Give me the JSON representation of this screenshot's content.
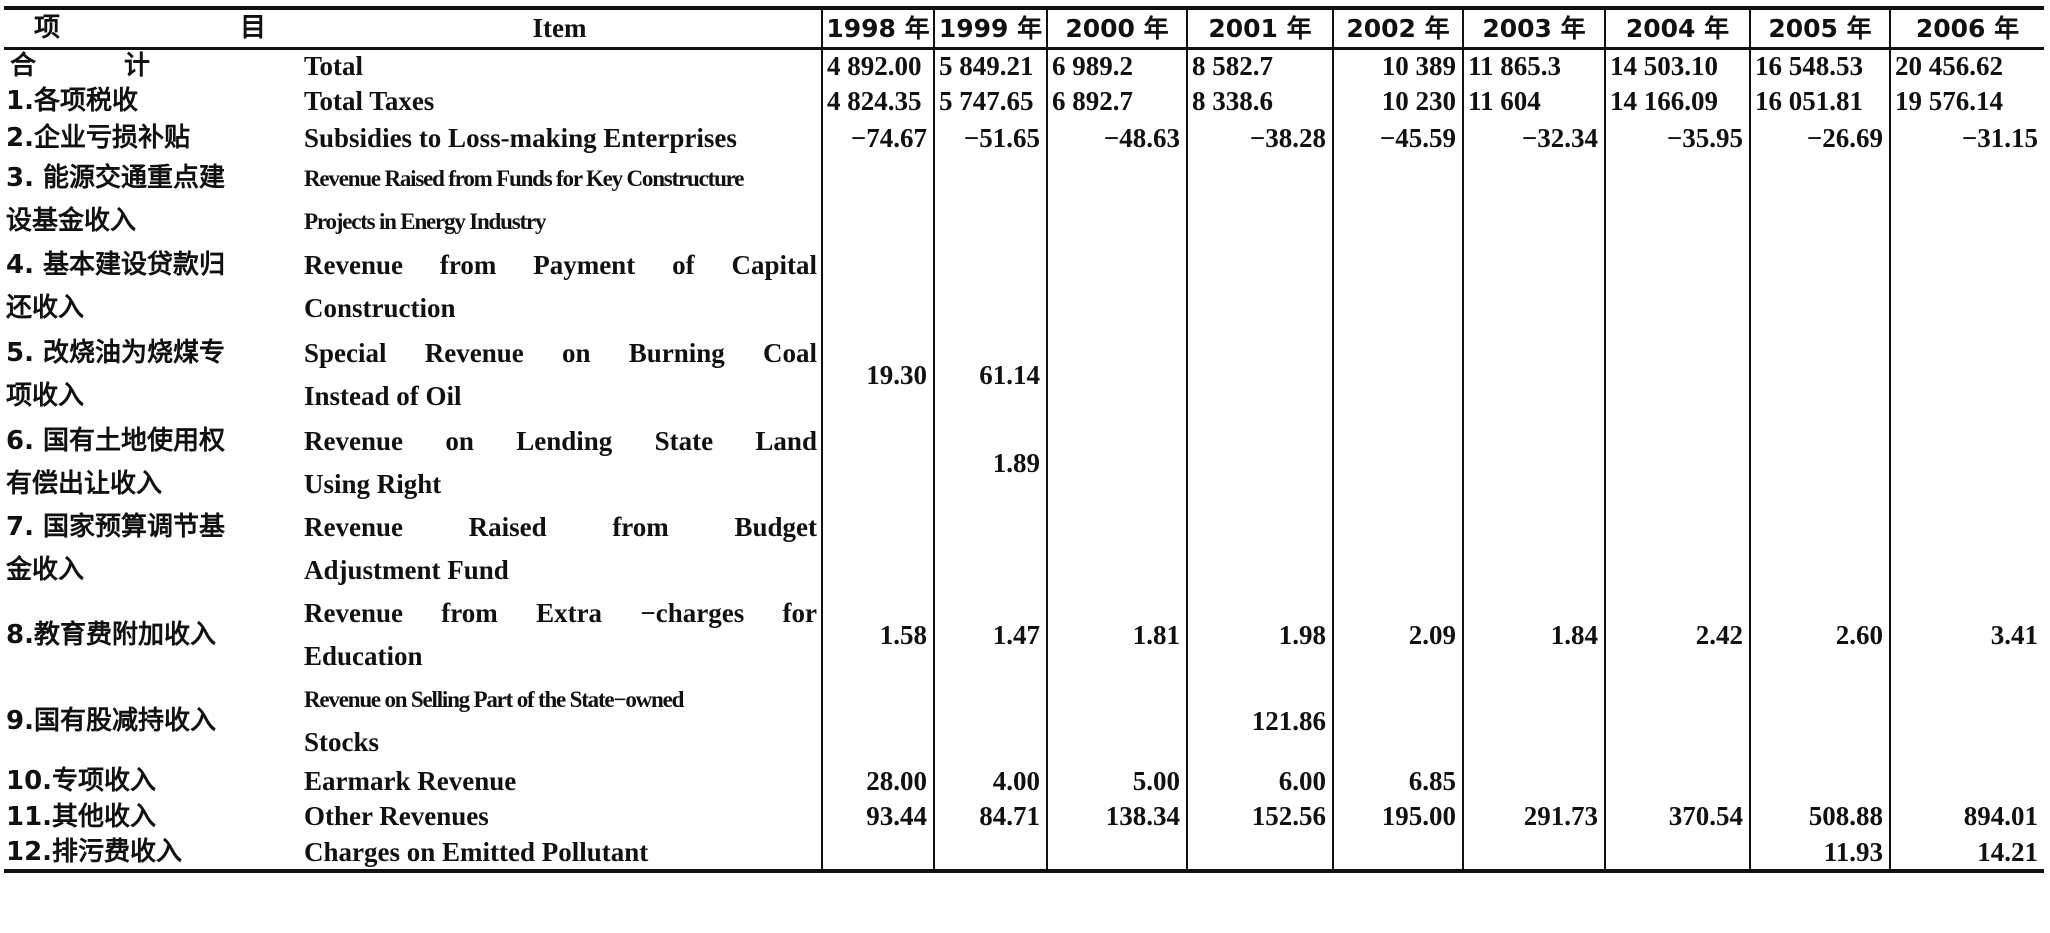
{
  "header": {
    "col_zh_1": "项",
    "col_zh_2": "目",
    "col_en": "Item",
    "years": [
      "1998 年",
      "1999 年",
      "2000 年",
      "2001 年",
      "2002 年",
      "2003 年",
      "2004 年",
      "2005 年",
      "2006 年"
    ]
  },
  "rows": {
    "total": {
      "zh_1": "合",
      "zh_2": "计",
      "en": "Total",
      "values": [
        "4 892.00",
        "5 849.21",
        "6 989.2",
        "8 582.7",
        "10 389",
        "11 865.3",
        "14 503.10",
        "16 548.53",
        "20 456.62"
      ]
    },
    "taxes": {
      "zh": "1.各项税收",
      "en": "Total Taxes",
      "values": [
        "4 824.35",
        "5 747.65",
        "6 892.7",
        "8 338.6",
        "10 230",
        "11 604",
        "14 166.09",
        "16 051.81",
        "19 576.14"
      ]
    },
    "subsidies": {
      "zh": "2.企业亏损补贴",
      "en": "Subsidies to Loss-making Enterprises",
      "values": [
        "−74.67",
        "−51.65",
        "−48.63",
        "−38.28",
        "−45.59",
        "−32.34",
        "−35.95",
        "−26.69",
        "−31.15"
      ]
    },
    "energy_funds": {
      "zh_line1": "3. 能源交通重点建",
      "zh_line2": "设基金收入",
      "en_line1": "Revenue Raised from Funds for Key Constructure",
      "en_line2": "Projects in Energy Industry"
    },
    "capital_construction": {
      "zh_line1": "4. 基本建设贷款归",
      "zh_line2": "还收入",
      "en_line1_words": [
        "Revenue",
        "from",
        "Payment",
        "of",
        "Capital"
      ],
      "en_line2": "Construction"
    },
    "coal": {
      "zh_line1": "5. 改烧油为烧煤专",
      "zh_line2": "项收入",
      "en_line1_words": [
        "Special",
        "Revenue",
        "on",
        "Burning",
        "Coal"
      ],
      "en_line2": "Instead of Oil",
      "values": [
        "19.30",
        "61.14"
      ]
    },
    "land": {
      "zh_line1": "6. 国有土地使用权",
      "zh_line2": "有偿出让收入",
      "en_line1_words": [
        "Revenue",
        "on",
        "Lending",
        "State",
        "Land"
      ],
      "en_line2": "Using Right",
      "values": [
        "1.89"
      ]
    },
    "budget_adjustment": {
      "zh_line1": "7. 国家预算调节基",
      "zh_line2": "金收入",
      "en_line1_words": [
        "Revenue",
        "Raised",
        "from",
        "Budget"
      ],
      "en_line2": "Adjustment Fund"
    },
    "education": {
      "zh": "8.教育费附加收入",
      "en_line1_words": [
        "Revenue",
        "from",
        "Extra",
        "−charges",
        "for"
      ],
      "en_line2": "Education",
      "values": [
        "1.58",
        "1.47",
        "1.81",
        "1.98",
        "2.09",
        "1.84",
        "2.42",
        "2.60",
        "3.41"
      ]
    },
    "state_stocks": {
      "zh": "9.国有股减持收入",
      "en_line1": "Revenue on Selling Part of the State−owned",
      "en_line2": "Stocks",
      "values": [
        "121.86"
      ]
    },
    "earmark": {
      "zh": "10.专项收入",
      "en": "Earmark Revenue",
      "values": [
        "28.00",
        "4.00",
        "5.00",
        "6.00",
        "6.85"
      ]
    },
    "other": {
      "zh": "11.其他收入",
      "en": "Other Revenues",
      "values": [
        "93.44",
        "84.71",
        "138.34",
        "152.56",
        "195.00",
        "291.73",
        "370.54",
        "508.88",
        "894.01"
      ]
    },
    "pollutant": {
      "zh": "12.排污费收入",
      "en": "Charges on Emitted Pollutant",
      "values": [
        "11.93",
        "14.21"
      ]
    }
  }
}
